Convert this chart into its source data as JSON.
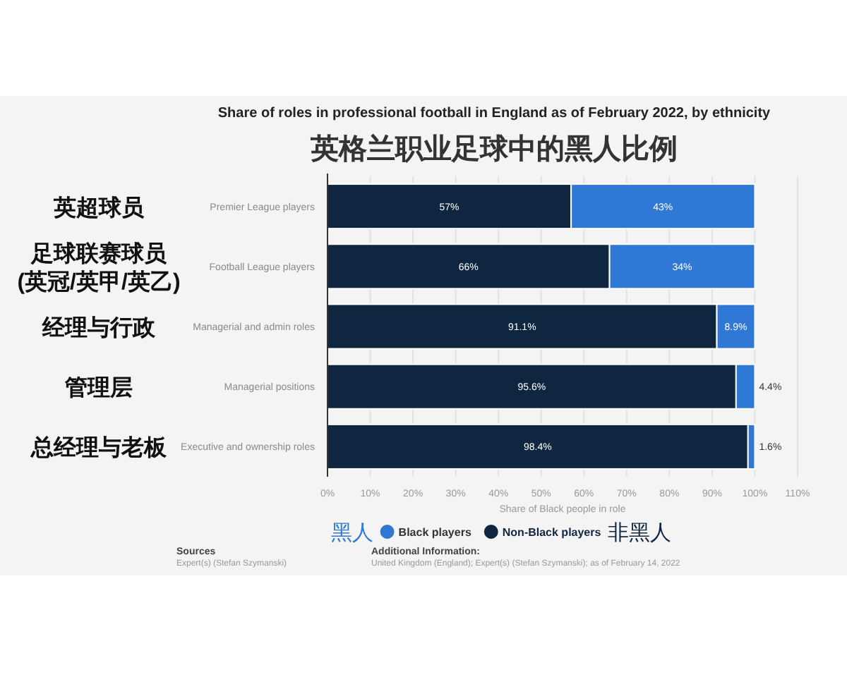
{
  "chart_data": {
    "type": "bar",
    "orientation": "horizontal",
    "stacked": true,
    "title": "Share of roles in professional football in England as of February 2022, by ethnicity",
    "subtitle": "英格兰职业足球中的黑人比例",
    "xlabel": "Share of Black people in role",
    "categories": [
      "Premier League players",
      "Football League players",
      "Managerial and admin roles",
      "Managerial positions",
      "Executive and ownership roles"
    ],
    "y2_categories": [
      "英超球员",
      "足球联赛球员\n(英冠/英甲/英乙)",
      "经理与行政",
      "管理层",
      "总经理与老板"
    ],
    "series": [
      {
        "name": "Non-Black players",
        "color": "#0f2641",
        "values": [
          57,
          66,
          91.1,
          95.6,
          98.4
        ],
        "value_labels": [
          "57%",
          "66%",
          "91.1%",
          "95.6%",
          "98.4%"
        ]
      },
      {
        "name": "Black players",
        "color": "#2f78d6",
        "values": [
          43,
          34,
          8.9,
          4.4,
          1.6
        ],
        "value_labels": [
          "43%",
          "34%",
          "8.9%",
          "4.4%",
          "1.6%"
        ]
      }
    ],
    "xlim": [
      0,
      110
    ],
    "xticks": [
      {
        "value": 0,
        "label": "0%"
      },
      {
        "value": 10,
        "label": "10%"
      },
      {
        "value": 20,
        "label": "20%"
      },
      {
        "value": 30,
        "label": "30%"
      },
      {
        "value": 40,
        "label": "40%"
      },
      {
        "value": 50,
        "label": "50%"
      },
      {
        "value": 60,
        "label": "60%"
      },
      {
        "value": 70,
        "label": "70%"
      },
      {
        "value": 80,
        "label": "80%"
      },
      {
        "value": 90,
        "label": "90%"
      },
      {
        "value": 100,
        "label": "100%"
      },
      {
        "value": 110,
        "label": "110%"
      }
    ],
    "grid": "x",
    "legend": "bottom",
    "annotations": [
      "黑人",
      "非黑人",
      "Sources",
      "Expert(s) (Stefan Szymanski)",
      "Additional Information:",
      "United Kingdom (England); Expert(s) (Stefan Szymanski); as of February 14, 2022"
    ]
  }
}
